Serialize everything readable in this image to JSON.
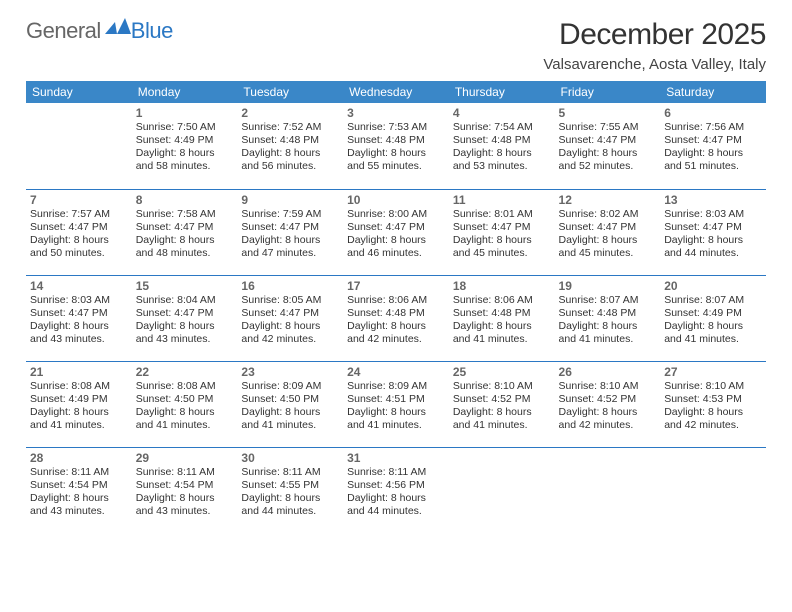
{
  "logo": {
    "text1": "General",
    "text2": "Blue",
    "accent_color": "#2b78c4"
  },
  "title": "December 2025",
  "location": "Valsavarenche, Aosta Valley, Italy",
  "colors": {
    "header_bg": "#3a87c8",
    "header_fg": "#ffffff",
    "divider": "#2b78c4",
    "daynum": "#666666",
    "text": "#333333"
  },
  "font": {
    "family": "Arial",
    "title_pt": 30,
    "location_pt": 15,
    "dayhead_pt": 12,
    "daynum_pt": 12,
    "info_pt": 10.5
  },
  "day_headers": [
    "Sunday",
    "Monday",
    "Tuesday",
    "Wednesday",
    "Thursday",
    "Friday",
    "Saturday"
  ],
  "weeks": [
    [
      null,
      {
        "n": "1",
        "sunrise": "7:50 AM",
        "sunset": "4:49 PM",
        "daylight": "8 hours and 58 minutes."
      },
      {
        "n": "2",
        "sunrise": "7:52 AM",
        "sunset": "4:48 PM",
        "daylight": "8 hours and 56 minutes."
      },
      {
        "n": "3",
        "sunrise": "7:53 AM",
        "sunset": "4:48 PM",
        "daylight": "8 hours and 55 minutes."
      },
      {
        "n": "4",
        "sunrise": "7:54 AM",
        "sunset": "4:48 PM",
        "daylight": "8 hours and 53 minutes."
      },
      {
        "n": "5",
        "sunrise": "7:55 AM",
        "sunset": "4:47 PM",
        "daylight": "8 hours and 52 minutes."
      },
      {
        "n": "6",
        "sunrise": "7:56 AM",
        "sunset": "4:47 PM",
        "daylight": "8 hours and 51 minutes."
      }
    ],
    [
      {
        "n": "7",
        "sunrise": "7:57 AM",
        "sunset": "4:47 PM",
        "daylight": "8 hours and 50 minutes."
      },
      {
        "n": "8",
        "sunrise": "7:58 AM",
        "sunset": "4:47 PM",
        "daylight": "8 hours and 48 minutes."
      },
      {
        "n": "9",
        "sunrise": "7:59 AM",
        "sunset": "4:47 PM",
        "daylight": "8 hours and 47 minutes."
      },
      {
        "n": "10",
        "sunrise": "8:00 AM",
        "sunset": "4:47 PM",
        "daylight": "8 hours and 46 minutes."
      },
      {
        "n": "11",
        "sunrise": "8:01 AM",
        "sunset": "4:47 PM",
        "daylight": "8 hours and 45 minutes."
      },
      {
        "n": "12",
        "sunrise": "8:02 AM",
        "sunset": "4:47 PM",
        "daylight": "8 hours and 45 minutes."
      },
      {
        "n": "13",
        "sunrise": "8:03 AM",
        "sunset": "4:47 PM",
        "daylight": "8 hours and 44 minutes."
      }
    ],
    [
      {
        "n": "14",
        "sunrise": "8:03 AM",
        "sunset": "4:47 PM",
        "daylight": "8 hours and 43 minutes."
      },
      {
        "n": "15",
        "sunrise": "8:04 AM",
        "sunset": "4:47 PM",
        "daylight": "8 hours and 43 minutes."
      },
      {
        "n": "16",
        "sunrise": "8:05 AM",
        "sunset": "4:47 PM",
        "daylight": "8 hours and 42 minutes."
      },
      {
        "n": "17",
        "sunrise": "8:06 AM",
        "sunset": "4:48 PM",
        "daylight": "8 hours and 42 minutes."
      },
      {
        "n": "18",
        "sunrise": "8:06 AM",
        "sunset": "4:48 PM",
        "daylight": "8 hours and 41 minutes."
      },
      {
        "n": "19",
        "sunrise": "8:07 AM",
        "sunset": "4:48 PM",
        "daylight": "8 hours and 41 minutes."
      },
      {
        "n": "20",
        "sunrise": "8:07 AM",
        "sunset": "4:49 PM",
        "daylight": "8 hours and 41 minutes."
      }
    ],
    [
      {
        "n": "21",
        "sunrise": "8:08 AM",
        "sunset": "4:49 PM",
        "daylight": "8 hours and 41 minutes."
      },
      {
        "n": "22",
        "sunrise": "8:08 AM",
        "sunset": "4:50 PM",
        "daylight": "8 hours and 41 minutes."
      },
      {
        "n": "23",
        "sunrise": "8:09 AM",
        "sunset": "4:50 PM",
        "daylight": "8 hours and 41 minutes."
      },
      {
        "n": "24",
        "sunrise": "8:09 AM",
        "sunset": "4:51 PM",
        "daylight": "8 hours and 41 minutes."
      },
      {
        "n": "25",
        "sunrise": "8:10 AM",
        "sunset": "4:52 PM",
        "daylight": "8 hours and 41 minutes."
      },
      {
        "n": "26",
        "sunrise": "8:10 AM",
        "sunset": "4:52 PM",
        "daylight": "8 hours and 42 minutes."
      },
      {
        "n": "27",
        "sunrise": "8:10 AM",
        "sunset": "4:53 PM",
        "daylight": "8 hours and 42 minutes."
      }
    ],
    [
      {
        "n": "28",
        "sunrise": "8:11 AM",
        "sunset": "4:54 PM",
        "daylight": "8 hours and 43 minutes."
      },
      {
        "n": "29",
        "sunrise": "8:11 AM",
        "sunset": "4:54 PM",
        "daylight": "8 hours and 43 minutes."
      },
      {
        "n": "30",
        "sunrise": "8:11 AM",
        "sunset": "4:55 PM",
        "daylight": "8 hours and 44 minutes."
      },
      {
        "n": "31",
        "sunrise": "8:11 AM",
        "sunset": "4:56 PM",
        "daylight": "8 hours and 44 minutes."
      },
      null,
      null,
      null
    ]
  ],
  "labels": {
    "sunrise": "Sunrise: ",
    "sunset": "Sunset: ",
    "daylight": "Daylight: "
  }
}
